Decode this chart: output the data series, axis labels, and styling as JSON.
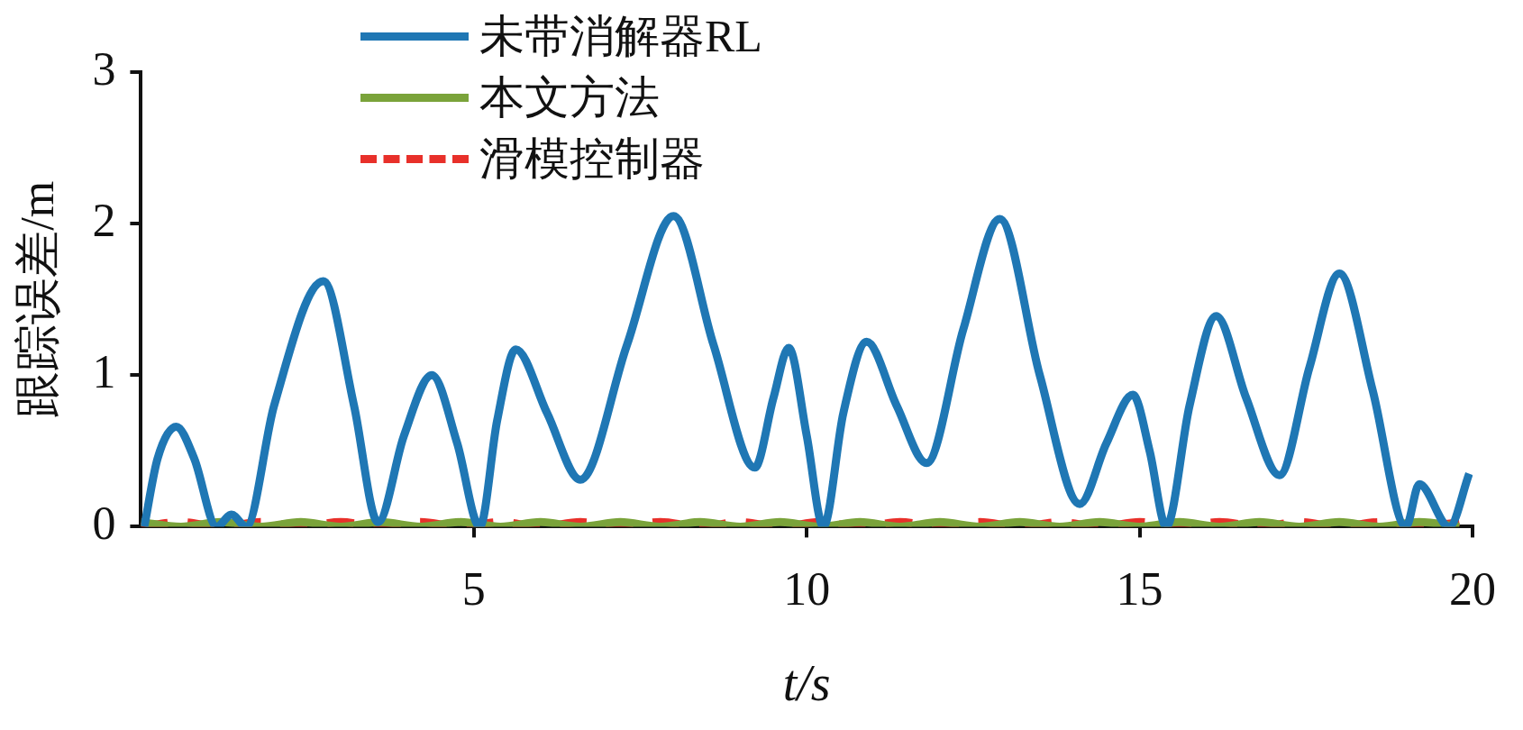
{
  "chart_data": {
    "type": "line",
    "xlabel": "t/s",
    "ylabel": "跟踪误差/m",
    "xlim": [
      0,
      20
    ],
    "xticks": [
      5,
      10,
      15,
      20
    ],
    "ylim": [
      0,
      3
    ],
    "yticks": [
      0,
      1,
      2,
      3
    ],
    "grid": false,
    "legend": "top",
    "marker": "none",
    "series": [
      {
        "name": "未带消解器RL",
        "color": "#1f77b4",
        "x": [
          0.05,
          0.25,
          0.53,
          0.8,
          1.14,
          1.36,
          1.58,
          2.0,
          2.74,
          3.2,
          3.56,
          3.95,
          4.37,
          4.75,
          5.09,
          5.35,
          5.63,
          6.1,
          6.6,
          7.3,
          8.0,
          8.6,
          9.22,
          9.5,
          9.73,
          10.0,
          10.25,
          10.55,
          10.9,
          11.35,
          11.8,
          12.35,
          12.9,
          13.5,
          14.1,
          14.5,
          14.9,
          15.15,
          15.4,
          15.75,
          16.15,
          16.6,
          17.1,
          17.55,
          18.0,
          18.5,
          19.0,
          19.2,
          19.65,
          19.95
        ],
        "values": [
          0,
          0.45,
          0.66,
          0.45,
          0,
          0.08,
          0,
          0.8,
          1.62,
          0.8,
          0.03,
          0.6,
          1.0,
          0.55,
          0,
          0.7,
          1.17,
          0.75,
          0.31,
          1.2,
          2.05,
          1.2,
          0.39,
          0.85,
          1.18,
          0.6,
          0,
          0.75,
          1.22,
          0.8,
          0.42,
          1.3,
          2.03,
          1.0,
          0.15,
          0.55,
          0.87,
          0.5,
          0,
          0.8,
          1.39,
          0.85,
          0.34,
          1.05,
          1.67,
          0.9,
          0,
          0.28,
          0,
          0.35
        ]
      },
      {
        "name": "本文方法",
        "color": "#7aa33a",
        "x": [
          0,
          0.6,
          1.2,
          1.8,
          2.4,
          3.0,
          3.6,
          4.2,
          4.8,
          5.4,
          6.0,
          6.6,
          7.2,
          7.8,
          8.4,
          9.0,
          9.6,
          10.2,
          10.8,
          11.4,
          12.0,
          12.6,
          13.2,
          13.8,
          14.4,
          15.0,
          15.6,
          16.2,
          16.8,
          17.4,
          18.0,
          18.6,
          19.2,
          19.8
        ],
        "values": [
          0.03,
          0,
          0.03,
          0,
          0.03,
          0,
          0.03,
          0,
          0.03,
          0,
          0.03,
          0,
          0.03,
          0,
          0.03,
          0,
          0.03,
          0,
          0.03,
          0,
          0.03,
          0,
          0.03,
          0,
          0.03,
          0,
          0.03,
          0,
          0.03,
          0,
          0.03,
          0,
          0.03,
          0
        ]
      },
      {
        "name": "滑模控制器",
        "color": "#e8302a",
        "x": [
          0,
          0.6,
          1.2,
          1.8,
          2.4,
          3.0,
          3.6,
          4.2,
          4.8,
          5.4,
          6.0,
          6.6,
          7.2,
          7.8,
          8.4,
          9.0,
          9.6,
          10.2,
          10.8,
          11.4,
          12.0,
          12.6,
          13.2,
          13.8,
          14.4,
          15.0,
          15.6,
          16.2,
          16.8,
          17.4,
          18.0,
          18.6,
          19.2,
          19.8
        ],
        "values": [
          0,
          0.03,
          0,
          0.03,
          0,
          0.03,
          0,
          0.03,
          0,
          0.03,
          0,
          0.03,
          0,
          0.03,
          0,
          0.03,
          0,
          0.03,
          0,
          0.03,
          0,
          0.03,
          0,
          0.03,
          0,
          0.03,
          0,
          0.03,
          0,
          0.03,
          0,
          0.03,
          0,
          0.03
        ],
        "line_style": "dashed"
      }
    ]
  }
}
